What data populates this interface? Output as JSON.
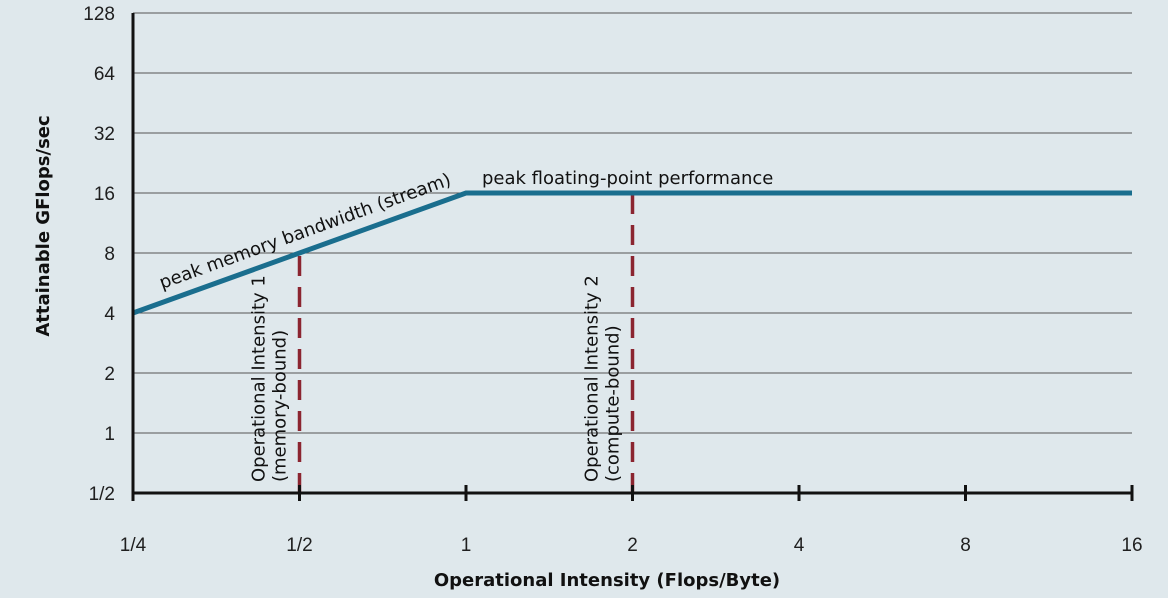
{
  "chart_data": {
    "type": "line",
    "title": "",
    "xlabel": "Operational Intensity (Flops/Byte)",
    "ylabel": "Attainable GFlops/sec",
    "x_scale": "log2",
    "y_scale": "log2",
    "xlim": [
      0.25,
      16
    ],
    "ylim": [
      0.5,
      128
    ],
    "x_ticks": [
      {
        "value": 0.25,
        "label": "1/4"
      },
      {
        "value": 0.5,
        "label": "1/2"
      },
      {
        "value": 1,
        "label": "1"
      },
      {
        "value": 2,
        "label": "2"
      },
      {
        "value": 4,
        "label": "4"
      },
      {
        "value": 8,
        "label": "8"
      },
      {
        "value": 16,
        "label": "16"
      }
    ],
    "y_ticks": [
      {
        "value": 0.5,
        "label": "1/2"
      },
      {
        "value": 1,
        "label": "1"
      },
      {
        "value": 2,
        "label": "2"
      },
      {
        "value": 4,
        "label": "4"
      },
      {
        "value": 8,
        "label": "8"
      },
      {
        "value": 16,
        "label": "16"
      },
      {
        "value": 32,
        "label": "32"
      },
      {
        "value": 64,
        "label": "64"
      },
      {
        "value": 128,
        "label": "128"
      }
    ],
    "grid": "horizontal",
    "series": [
      {
        "x": [
          0.25,
          1,
          16
        ],
        "y": [
          4,
          16,
          16
        ],
        "color": "#1a6e8e"
      }
    ],
    "reference_lines": [
      {
        "x": 0.5,
        "y_from": 0.5,
        "y_to": 8,
        "style": "dashed",
        "color": "#8b2530"
      },
      {
        "x": 2,
        "y_from": 0.5,
        "y_to": 16,
        "style": "dashed",
        "color": "#8b2530"
      }
    ],
    "annotations": {
      "memory_roof": "peak memory bandwidth (stream)",
      "compute_roof": "peak floating-point performance",
      "oi1_line1": "Operational Intensity 1",
      "oi1_line2": "(memory-bound)",
      "oi2_line1": "Operational Intensity 2",
      "oi2_line2": "(compute-bound)"
    }
  }
}
